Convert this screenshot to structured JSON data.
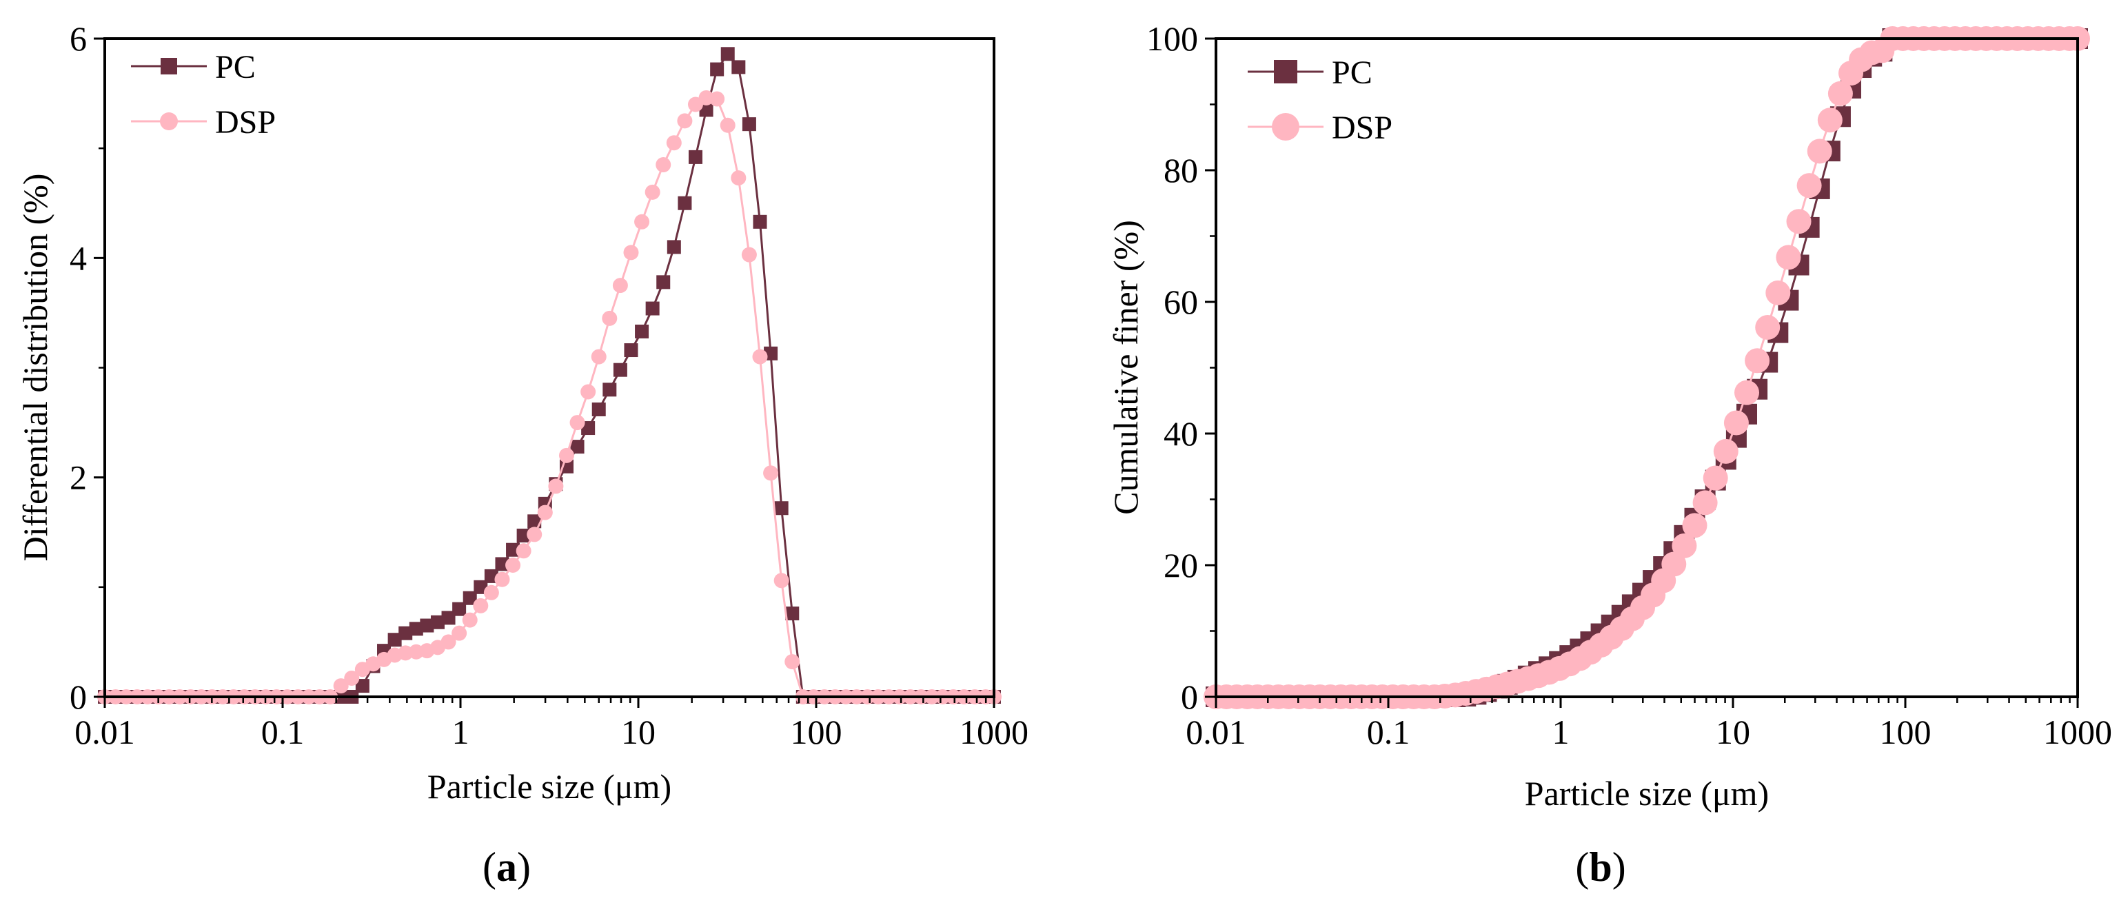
{
  "colors": {
    "pc": "#6b3040",
    "dsp": "#ffb6c1",
    "axis": "#000000"
  },
  "chart_data": [
    {
      "type": "line",
      "panel_label": "a",
      "xscale": "log",
      "xlim": [
        0.01,
        1000
      ],
      "ylim": [
        0,
        6
      ],
      "xticks": [
        0.01,
        0.1,
        1,
        10,
        100,
        1000
      ],
      "xtick_labels": [
        "0.01",
        "0.1",
        "1",
        "10",
        "100",
        "1000"
      ],
      "yticks": [
        0,
        2,
        4,
        6
      ],
      "ytick_labels": [
        "0",
        "2",
        "4",
        "6"
      ],
      "xlabel": "Particle size (μm)",
      "ylabel": "Differential distribution (%)",
      "legend": "top-left",
      "series": [
        {
          "name": "PC",
          "marker": "square",
          "x": [
            0.01,
            0.0115,
            0.0132,
            0.0152,
            0.0174,
            0.02,
            0.023,
            0.0264,
            0.0304,
            0.0349,
            0.0401,
            0.0461,
            0.053,
            0.0609,
            0.07,
            0.0804,
            0.0924,
            0.1062,
            0.122,
            0.1403,
            0.1612,
            0.1853,
            0.2129,
            0.2447,
            0.2812,
            0.3232,
            0.3714,
            0.4269,
            0.4906,
            0.5638,
            0.6479,
            0.7446,
            0.8557,
            0.9834,
            1.1302,
            1.2988,
            1.4926,
            1.7154,
            1.9713,
            2.2655,
            2.6036,
            2.9921,
            3.4386,
            3.9518,
            4.5415,
            5.2192,
            5.998,
            6.893,
            7.9216,
            9.1037,
            10.4623,
            12.0235,
            13.8178,
            15.8798,
            18.2495,
            20.9729,
            24.1027,
            27.6994,
            31.833,
            36.5834,
            42.0426,
            48.3165,
            55.5266,
            63.8126,
            73.3352,
            84.2788,
            96.8557,
            111.3,
            127.9,
            147,
            168.9,
            194.2,
            223.1,
            256.4,
            294.7,
            338.7,
            389.2,
            447.3,
            514,
            590.8,
            678.9,
            780.2,
            896.7,
            1000
          ],
          "values": [
            0,
            0,
            0,
            0,
            0,
            0,
            0,
            0,
            0,
            0,
            0,
            0,
            0,
            0,
            0,
            0,
            0,
            0,
            0,
            0,
            0,
            0,
            0,
            0,
            0.1,
            0.28,
            0.42,
            0.52,
            0.58,
            0.62,
            0.65,
            0.68,
            0.72,
            0.8,
            0.9,
            1.0,
            1.1,
            1.21,
            1.34,
            1.47,
            1.6,
            1.76,
            1.94,
            2.1,
            2.28,
            2.45,
            2.62,
            2.8,
            2.98,
            3.16,
            3.33,
            3.54,
            3.78,
            4.1,
            4.5,
            4.92,
            5.35,
            5.72,
            5.86,
            5.74,
            5.22,
            4.33,
            3.13,
            1.72,
            0.76,
            0,
            0,
            0,
            0,
            0,
            0,
            0,
            0,
            0,
            0,
            0,
            0,
            0,
            0,
            0,
            0,
            0,
            0,
            0
          ]
        },
        {
          "name": "DSP",
          "marker": "circle",
          "x": [
            0.01,
            0.0115,
            0.0132,
            0.0152,
            0.0174,
            0.02,
            0.023,
            0.0264,
            0.0304,
            0.0349,
            0.0401,
            0.0461,
            0.053,
            0.0609,
            0.07,
            0.0804,
            0.0924,
            0.1062,
            0.122,
            0.1403,
            0.1612,
            0.1853,
            0.2129,
            0.2447,
            0.2812,
            0.3232,
            0.3714,
            0.4269,
            0.4906,
            0.5638,
            0.6479,
            0.7446,
            0.8557,
            0.9834,
            1.1302,
            1.2988,
            1.4926,
            1.7154,
            1.9713,
            2.2655,
            2.6036,
            2.9921,
            3.4386,
            3.9518,
            4.5415,
            5.2192,
            5.998,
            6.893,
            7.9216,
            9.1037,
            10.4623,
            12.0235,
            13.8178,
            15.8798,
            18.2495,
            20.9729,
            24.1027,
            27.6994,
            31.833,
            36.5834,
            42.0426,
            48.3165,
            55.5266,
            63.8126,
            73.3352,
            84.2788,
            96.8557,
            111.3,
            127.9,
            147,
            168.9,
            194.2,
            223.1,
            256.4,
            294.7,
            338.7,
            389.2,
            447.3,
            514,
            590.8,
            678.9,
            780.2,
            896.7,
            1000
          ],
          "values": [
            0,
            0,
            0,
            0,
            0,
            0,
            0,
            0,
            0,
            0,
            0,
            0,
            0,
            0,
            0,
            0,
            0,
            0,
            0,
            0,
            0,
            0,
            0.1,
            0.17,
            0.25,
            0.3,
            0.34,
            0.38,
            0.4,
            0.41,
            0.42,
            0.45,
            0.5,
            0.58,
            0.7,
            0.83,
            0.95,
            1.07,
            1.2,
            1.33,
            1.48,
            1.68,
            1.92,
            2.2,
            2.5,
            2.78,
            3.1,
            3.45,
            3.75,
            4.05,
            4.33,
            4.6,
            4.85,
            5.05,
            5.25,
            5.4,
            5.46,
            5.45,
            5.21,
            4.73,
            4.03,
            3.1,
            2.04,
            1.06,
            0.32,
            0,
            0,
            0,
            0,
            0,
            0,
            0,
            0,
            0,
            0,
            0,
            0,
            0,
            0,
            0,
            0,
            0,
            0,
            0
          ]
        }
      ]
    },
    {
      "type": "line",
      "panel_label": "b",
      "xscale": "log",
      "xlim": [
        0.01,
        1000
      ],
      "ylim": [
        0,
        100
      ],
      "xticks": [
        0.01,
        0.1,
        1,
        10,
        100,
        1000
      ],
      "xtick_labels": [
        "0.01",
        "0.1",
        "1",
        "10",
        "100",
        "1000"
      ],
      "yticks": [
        0,
        20,
        40,
        60,
        80,
        100
      ],
      "ytick_labels": [
        "0",
        "20",
        "40",
        "60",
        "80",
        "100"
      ],
      "xlabel": "Particle size (μm)",
      "ylabel": "Cumulative finer (%)",
      "legend": "top-left",
      "series": [
        {
          "name": "PC",
          "marker": "square",
          "x": [
            0.01,
            0.0115,
            0.0132,
            0.0152,
            0.0174,
            0.02,
            0.023,
            0.0264,
            0.0304,
            0.0349,
            0.0401,
            0.0461,
            0.053,
            0.0609,
            0.07,
            0.0804,
            0.0924,
            0.1062,
            0.122,
            0.1403,
            0.1612,
            0.1853,
            0.2129,
            0.2447,
            0.2812,
            0.3232,
            0.3714,
            0.4269,
            0.4906,
            0.5638,
            0.6479,
            0.7446,
            0.8557,
            0.9834,
            1.1302,
            1.2988,
            1.4926,
            1.7154,
            1.9713,
            2.2655,
            2.6036,
            2.9921,
            3.4386,
            3.9518,
            4.5415,
            5.2192,
            5.998,
            6.893,
            7.9216,
            9.1037,
            10.4623,
            12.0235,
            13.8178,
            15.8798,
            18.2495,
            20.9729,
            24.1027,
            27.6994,
            31.833,
            36.5834,
            42.0426,
            48.3165,
            55.5266,
            63.8126,
            73.3352,
            84.2788,
            96.8557,
            111.3,
            127.9,
            147,
            168.9,
            194.2,
            223.1,
            256.4,
            294.7,
            338.7,
            389.2,
            447.3,
            514,
            590.8,
            678.9,
            780.2,
            896.7,
            1000
          ],
          "values": [
            0,
            0,
            0,
            0,
            0,
            0,
            0,
            0,
            0,
            0,
            0,
            0,
            0,
            0,
            0,
            0,
            0,
            0,
            0,
            0,
            0,
            0,
            0,
            0,
            0.1,
            0.38,
            0.8,
            1.32,
            1.9,
            2.52,
            3.17,
            3.85,
            4.57,
            5.37,
            6.27,
            7.27,
            8.37,
            9.58,
            10.92,
            12.39,
            13.99,
            15.75,
            17.69,
            19.79,
            22.07,
            24.52,
            27.14,
            29.94,
            32.92,
            36.08,
            39.41,
            42.95,
            46.73,
            50.83,
            55.33,
            60.25,
            65.6,
            71.32,
            77.18,
            82.92,
            88.14,
            92.47,
            95.6,
            97.32,
            98.08,
            100,
            100,
            100,
            100,
            100,
            100,
            100,
            100,
            100,
            100,
            100,
            100,
            100,
            100,
            100,
            100,
            100,
            100,
            100
          ]
        },
        {
          "name": "DSP",
          "marker": "circle",
          "x": [
            0.01,
            0.0115,
            0.0132,
            0.0152,
            0.0174,
            0.02,
            0.023,
            0.0264,
            0.0304,
            0.0349,
            0.0401,
            0.0461,
            0.053,
            0.0609,
            0.07,
            0.0804,
            0.0924,
            0.1062,
            0.122,
            0.1403,
            0.1612,
            0.1853,
            0.2129,
            0.2447,
            0.2812,
            0.3232,
            0.3714,
            0.4269,
            0.4906,
            0.5638,
            0.6479,
            0.7446,
            0.8557,
            0.9834,
            1.1302,
            1.2988,
            1.4926,
            1.7154,
            1.9713,
            2.2655,
            2.6036,
            2.9921,
            3.4386,
            3.9518,
            4.5415,
            5.2192,
            5.998,
            6.893,
            7.9216,
            9.1037,
            10.4623,
            12.0235,
            13.8178,
            15.8798,
            18.2495,
            20.9729,
            24.1027,
            27.6994,
            31.833,
            36.5834,
            42.0426,
            48.3165,
            55.5266,
            63.8126,
            73.3352,
            84.2788,
            96.8557,
            111.3,
            127.9,
            147,
            168.9,
            194.2,
            223.1,
            256.4,
            294.7,
            338.7,
            389.2,
            447.3,
            514,
            590.8,
            678.9,
            780.2,
            896.7,
            1000
          ],
          "values": [
            0,
            0,
            0,
            0,
            0,
            0,
            0,
            0,
            0,
            0,
            0,
            0,
            0,
            0,
            0,
            0,
            0,
            0,
            0,
            0,
            0,
            0,
            0.1,
            0.27,
            0.52,
            0.82,
            1.16,
            1.54,
            1.94,
            2.35,
            2.77,
            3.22,
            3.72,
            4.3,
            5,
            5.83,
            6.78,
            7.85,
            9.05,
            10.38,
            11.86,
            13.54,
            15.46,
            17.66,
            20.16,
            22.94,
            26.04,
            29.49,
            33.24,
            37.29,
            41.62,
            46.22,
            51.07,
            56.12,
            61.37,
            66.77,
            72.23,
            77.68,
            82.89,
            87.62,
            91.65,
            94.75,
            96.79,
            97.85,
            98.17,
            100,
            100,
            100,
            100,
            100,
            100,
            100,
            100,
            100,
            100,
            100,
            100,
            100,
            100,
            100,
            100,
            100,
            100,
            100
          ]
        }
      ]
    }
  ]
}
